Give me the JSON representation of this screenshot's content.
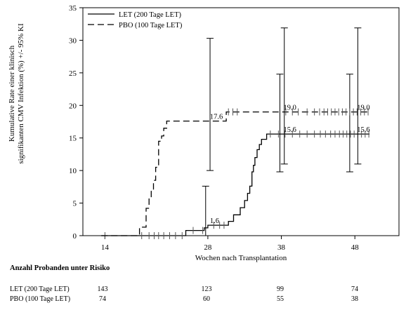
{
  "chart_data": {
    "type": "line",
    "ylabel_line1": "Kumulative Rate einer klinisch",
    "ylabel_line2": "signifikanten CMV Infektion (%) +/- 95% KI",
    "xlabel": "Wochen nach Transplantation",
    "xlim": [
      11,
      54
    ],
    "ylim": [
      0,
      35
    ],
    "x_ticks": [
      14,
      28,
      38,
      48
    ],
    "y_ticks": [
      0,
      5,
      10,
      15,
      20,
      25,
      30,
      35
    ],
    "legend_position": "top-left",
    "series": [
      {
        "name": "LET (200 Tage LET)",
        "style": "solid",
        "color": "#000000",
        "steps": [
          [
            13.5,
            0
          ],
          [
            25,
            0
          ],
          [
            25,
            0.8
          ],
          [
            27.5,
            0.8
          ],
          [
            27.5,
            1.2
          ],
          [
            28,
            1.2
          ],
          [
            28,
            1.6
          ],
          [
            30.8,
            1.6
          ],
          [
            30.8,
            2.2
          ],
          [
            31.5,
            2.2
          ],
          [
            31.5,
            3.2
          ],
          [
            32.4,
            3.2
          ],
          [
            32.4,
            4.3
          ],
          [
            33.0,
            4.3
          ],
          [
            33.0,
            5.4
          ],
          [
            33.4,
            5.4
          ],
          [
            33.4,
            6.5
          ],
          [
            33.7,
            6.5
          ],
          [
            33.7,
            7.6
          ],
          [
            34.0,
            7.6
          ],
          [
            34.0,
            9.8
          ],
          [
            34.2,
            9.8
          ],
          [
            34.2,
            10.8
          ],
          [
            34.4,
            10.8
          ],
          [
            34.4,
            12.0
          ],
          [
            34.7,
            12.0
          ],
          [
            34.7,
            13.2
          ],
          [
            35.0,
            13.2
          ],
          [
            35.0,
            14.0
          ],
          [
            35.3,
            14.0
          ],
          [
            35.3,
            14.8
          ],
          [
            36.0,
            14.8
          ],
          [
            36.0,
            15.6
          ],
          [
            50,
            15.6
          ]
        ],
        "censor_x": [
          14,
          19,
          20,
          20.7,
          21.3,
          22,
          22.8,
          23.6,
          24.5,
          26,
          27.3,
          28.8,
          29.6,
          30.2,
          36.5,
          37.6,
          38.5,
          39.5,
          40.5,
          41.5,
          42.5,
          43.3,
          44,
          44.7,
          45.3,
          45.9,
          46.4,
          46.9,
          47.4,
          47.9,
          48.4,
          48.9,
          49.4,
          49.9
        ],
        "ci": [
          {
            "x": 27.7,
            "lower": 0,
            "upper": 7.6
          },
          {
            "x": 37.8,
            "lower": 9.8,
            "upper": 24.8
          },
          {
            "x": 47.3,
            "lower": 9.8,
            "upper": 24.8
          }
        ],
        "labels": [
          {
            "x": 28,
            "y": 1.6,
            "text": "1.6"
          },
          {
            "x": 38,
            "y": 15.6,
            "text": "15.6"
          },
          {
            "x": 48,
            "y": 15.6,
            "text": "15.6"
          }
        ]
      },
      {
        "name": "PBO (100 Tage LET)",
        "style": "dashed",
        "color": "#000000",
        "steps": [
          [
            13.5,
            0
          ],
          [
            18.7,
            0
          ],
          [
            18.7,
            1.3
          ],
          [
            19.6,
            1.3
          ],
          [
            19.6,
            4.2
          ],
          [
            20.0,
            4.2
          ],
          [
            20.0,
            5.8
          ],
          [
            20.3,
            5.8
          ],
          [
            20.3,
            7.0
          ],
          [
            20.6,
            7.0
          ],
          [
            20.6,
            8.5
          ],
          [
            20.9,
            8.5
          ],
          [
            20.9,
            10.5
          ],
          [
            21.3,
            10.5
          ],
          [
            21.3,
            14.5
          ],
          [
            21.7,
            14.5
          ],
          [
            21.7,
            15.3
          ],
          [
            22.0,
            15.3
          ],
          [
            22.0,
            16.5
          ],
          [
            22.4,
            16.5
          ],
          [
            22.4,
            17.6
          ],
          [
            30.5,
            17.6
          ],
          [
            30.5,
            19.0
          ],
          [
            50,
            19.0
          ]
        ],
        "censor_x": [
          30.8,
          31.4,
          32,
          38.6,
          39.5,
          40.3,
          41.5,
          42.5,
          43.2,
          43.8,
          44.3,
          44.8,
          45.3,
          45.8,
          46.3,
          46.8,
          47.3,
          47.8,
          48.3,
          48.8,
          49.3,
          49.8
        ],
        "ci": [
          {
            "x": 28.3,
            "lower": 10.0,
            "upper": 30.3
          },
          {
            "x": 38.4,
            "lower": 11.0,
            "upper": 31.9
          },
          {
            "x": 48.4,
            "lower": 11.0,
            "upper": 31.9
          }
        ],
        "labels": [
          {
            "x": 28,
            "y": 17.6,
            "text": "17.6"
          },
          {
            "x": 38,
            "y": 19.0,
            "text": "19.0"
          },
          {
            "x": 48,
            "y": 19.0,
            "text": "19.0"
          }
        ]
      }
    ]
  },
  "risk_table": {
    "title": "Anzahl Probanden unter Risiko",
    "rows": [
      {
        "label": "LET (200 Tage LET)",
        "values": [
          "143",
          "123",
          "99",
          "74"
        ]
      },
      {
        "label": "PBO (100 Tage LET)",
        "values": [
          "74",
          "60",
          "55",
          "38"
        ]
      }
    ]
  }
}
